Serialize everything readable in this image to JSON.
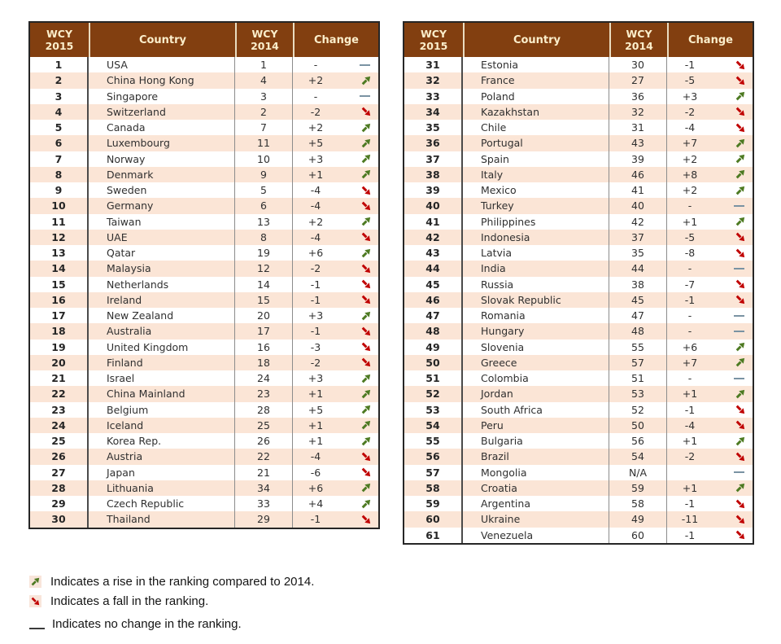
{
  "colors": {
    "header_bg": "#823F10",
    "header_text": "#FBEECB",
    "row_alt": "#FBE5D6",
    "border": "#262626",
    "rise": "#4D7A22",
    "fall": "#C00000",
    "no_change": "#7A93A3",
    "legend_dash": "#3B3B3B"
  },
  "tables": [
    {
      "headers": {
        "rank_line1": "WCY",
        "rank_line2": "2015",
        "country": "Country",
        "prev_line1": "WCY",
        "prev_line2": "2014",
        "change": "Change"
      },
      "rows": [
        {
          "rank": "1",
          "country": "USA",
          "prev": "1",
          "change": "-",
          "dir": "none"
        },
        {
          "rank": "2",
          "country": "China Hong Kong",
          "prev": "4",
          "change": "+2",
          "dir": "up"
        },
        {
          "rank": "3",
          "country": "Singapore",
          "prev": "3",
          "change": "-",
          "dir": "none"
        },
        {
          "rank": "4",
          "country": "Switzerland",
          "prev": "2",
          "change": "-2",
          "dir": "down"
        },
        {
          "rank": "5",
          "country": "Canada",
          "prev": "7",
          "change": "+2",
          "dir": "up"
        },
        {
          "rank": "6",
          "country": "Luxembourg",
          "prev": "11",
          "change": "+5",
          "dir": "up"
        },
        {
          "rank": "7",
          "country": "Norway",
          "prev": "10",
          "change": "+3",
          "dir": "up"
        },
        {
          "rank": "8",
          "country": "Denmark",
          "prev": "9",
          "change": "+1",
          "dir": "up"
        },
        {
          "rank": "9",
          "country": "Sweden",
          "prev": "5",
          "change": "-4",
          "dir": "down"
        },
        {
          "rank": "10",
          "country": "Germany",
          "prev": "6",
          "change": "-4",
          "dir": "down"
        },
        {
          "rank": "11",
          "country": "Taiwan",
          "prev": "13",
          "change": "+2",
          "dir": "up"
        },
        {
          "rank": "12",
          "country": "UAE",
          "prev": "8",
          "change": "-4",
          "dir": "down"
        },
        {
          "rank": "13",
          "country": "Qatar",
          "prev": "19",
          "change": "+6",
          "dir": "up"
        },
        {
          "rank": "14",
          "country": "Malaysia",
          "prev": "12",
          "change": "-2",
          "dir": "down"
        },
        {
          "rank": "15",
          "country": "Netherlands",
          "prev": "14",
          "change": "-1",
          "dir": "down"
        },
        {
          "rank": "16",
          "country": "Ireland",
          "prev": "15",
          "change": "-1",
          "dir": "down"
        },
        {
          "rank": "17",
          "country": "New Zealand",
          "prev": "20",
          "change": "+3",
          "dir": "up"
        },
        {
          "rank": "18",
          "country": "Australia",
          "prev": "17",
          "change": "-1",
          "dir": "down"
        },
        {
          "rank": "19",
          "country": "United Kingdom",
          "prev": "16",
          "change": "-3",
          "dir": "down"
        },
        {
          "rank": "20",
          "country": "Finland",
          "prev": "18",
          "change": "-2",
          "dir": "down"
        },
        {
          "rank": "21",
          "country": "Israel",
          "prev": "24",
          "change": "+3",
          "dir": "up"
        },
        {
          "rank": "22",
          "country": "China Mainland",
          "prev": "23",
          "change": "+1",
          "dir": "up"
        },
        {
          "rank": "23",
          "country": "Belgium",
          "prev": "28",
          "change": "+5",
          "dir": "up"
        },
        {
          "rank": "24",
          "country": "Iceland",
          "prev": "25",
          "change": "+1",
          "dir": "up"
        },
        {
          "rank": "25",
          "country": "Korea Rep.",
          "prev": "26",
          "change": "+1",
          "dir": "up"
        },
        {
          "rank": "26",
          "country": "Austria",
          "prev": "22",
          "change": "-4",
          "dir": "down"
        },
        {
          "rank": "27",
          "country": "Japan",
          "prev": "21",
          "change": "-6",
          "dir": "down"
        },
        {
          "rank": "28",
          "country": "Lithuania",
          "prev": "34",
          "change": "+6",
          "dir": "up"
        },
        {
          "rank": "29",
          "country": "Czech Republic",
          "prev": "33",
          "change": "+4",
          "dir": "up"
        },
        {
          "rank": "30",
          "country": "Thailand",
          "prev": "29",
          "change": "-1",
          "dir": "down"
        }
      ]
    },
    {
      "headers": {
        "rank_line1": "WCY",
        "rank_line2": "2015",
        "country": "Country",
        "prev_line1": "WCY",
        "prev_line2": "2014",
        "change": "Change"
      },
      "rows": [
        {
          "rank": "31",
          "country": "Estonia",
          "prev": "30",
          "change": "-1",
          "dir": "down"
        },
        {
          "rank": "32",
          "country": "France",
          "prev": "27",
          "change": "-5",
          "dir": "down"
        },
        {
          "rank": "33",
          "country": "Poland",
          "prev": "36",
          "change": "+3",
          "dir": "up"
        },
        {
          "rank": "34",
          "country": "Kazakhstan",
          "prev": "32",
          "change": "-2",
          "dir": "down"
        },
        {
          "rank": "35",
          "country": "Chile",
          "prev": "31",
          "change": "-4",
          "dir": "down"
        },
        {
          "rank": "36",
          "country": "Portugal",
          "prev": "43",
          "change": "+7",
          "dir": "up"
        },
        {
          "rank": "37",
          "country": "Spain",
          "prev": "39",
          "change": "+2",
          "dir": "up"
        },
        {
          "rank": "38",
          "country": "Italy",
          "prev": "46",
          "change": "+8",
          "dir": "up"
        },
        {
          "rank": "39",
          "country": "Mexico",
          "prev": "41",
          "change": "+2",
          "dir": "up"
        },
        {
          "rank": "40",
          "country": "Turkey",
          "prev": "40",
          "change": "-",
          "dir": "none"
        },
        {
          "rank": "41",
          "country": "Philippines",
          "prev": "42",
          "change": "+1",
          "dir": "up"
        },
        {
          "rank": "42",
          "country": "Indonesia",
          "prev": "37",
          "change": "-5",
          "dir": "down"
        },
        {
          "rank": "43",
          "country": "Latvia",
          "prev": "35",
          "change": "-8",
          "dir": "down"
        },
        {
          "rank": "44",
          "country": "India",
          "prev": "44",
          "change": "-",
          "dir": "none"
        },
        {
          "rank": "45",
          "country": "Russia",
          "prev": "38",
          "change": "-7",
          "dir": "down"
        },
        {
          "rank": "46",
          "country": "Slovak Republic",
          "prev": "45",
          "change": "-1",
          "dir": "down"
        },
        {
          "rank": "47",
          "country": "Romania",
          "prev": "47",
          "change": "-",
          "dir": "none"
        },
        {
          "rank": "48",
          "country": "Hungary",
          "prev": "48",
          "change": "-",
          "dir": "none"
        },
        {
          "rank": "49",
          "country": "Slovenia",
          "prev": "55",
          "change": "+6",
          "dir": "up"
        },
        {
          "rank": "50",
          "country": "Greece",
          "prev": "57",
          "change": "+7",
          "dir": "up"
        },
        {
          "rank": "51",
          "country": "Colombia",
          "prev": "51",
          "change": "-",
          "dir": "none"
        },
        {
          "rank": "52",
          "country": "Jordan",
          "prev": "53",
          "change": "+1",
          "dir": "up"
        },
        {
          "rank": "53",
          "country": "South Africa",
          "prev": "52",
          "change": "-1",
          "dir": "down"
        },
        {
          "rank": "54",
          "country": "Peru",
          "prev": "50",
          "change": "-4",
          "dir": "down"
        },
        {
          "rank": "55",
          "country": "Bulgaria",
          "prev": "56",
          "change": "+1",
          "dir": "up"
        },
        {
          "rank": "56",
          "country": "Brazil",
          "prev": "54",
          "change": "-2",
          "dir": "down"
        },
        {
          "rank": "57",
          "country": "Mongolia",
          "prev": "N/A",
          "change": "",
          "dir": "none"
        },
        {
          "rank": "58",
          "country": "Croatia",
          "prev": "59",
          "change": "+1",
          "dir": "up"
        },
        {
          "rank": "59",
          "country": "Argentina",
          "prev": "58",
          "change": "-1",
          "dir": "down"
        },
        {
          "rank": "60",
          "country": "Ukraine",
          "prev": "49",
          "change": "-11",
          "dir": "down"
        },
        {
          "rank": "61",
          "country": "Venezuela",
          "prev": "60",
          "change": "-1",
          "dir": "down"
        }
      ]
    }
  ],
  "legend": {
    "items": [
      {
        "icon": "rise-arrow",
        "text": "Indicates a rise in the ranking compared to 2014."
      },
      {
        "icon": "fall-arrow",
        "text": "Indicates a fall in the ranking."
      },
      {
        "icon": "no-change-dash",
        "text": "Indicates no change in the ranking."
      }
    ]
  }
}
